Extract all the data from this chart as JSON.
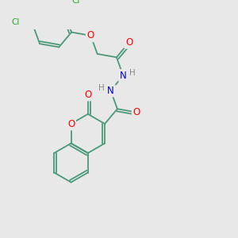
{
  "background_color": "#e8e8e8",
  "bond_color": "#4a9a7a",
  "atom_colors": {
    "O": "#ff0000",
    "N": "#0000cc",
    "Cl": "#22aa22",
    "H": "#888888"
  },
  "lw": 1.3,
  "fs": 8.5,
  "fs_small": 7.5
}
